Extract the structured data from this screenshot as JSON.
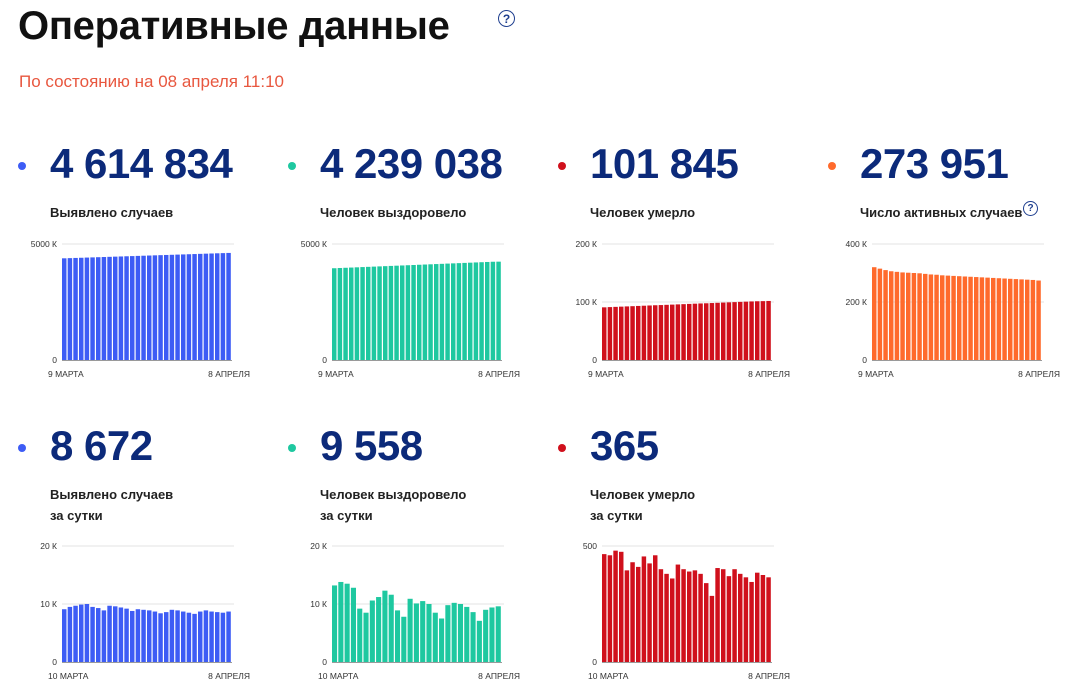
{
  "header": {
    "title": "Оперативные данные",
    "status": "По состоянию на 08 апреля 11:10",
    "help_icon": "question-circle-icon",
    "status_color": "#e8573f"
  },
  "cards": [
    {
      "value": "4 614 834",
      "label_lines": [
        "Выявлено случаев"
      ],
      "color": "#3d5cf5",
      "chart_data": {
        "type": "bar",
        "x_start": "9 МАРТА",
        "x_end": "8 АПРЕЛЯ",
        "ylim": [
          0,
          5000
        ],
        "yticks": [
          {
            "v": 0,
            "t": "0"
          },
          {
            "v": 5000,
            "t": "5000 К"
          }
        ],
        "values": [
          4383,
          4391,
          4399,
          4407,
          4415,
          4423,
          4431,
          4439,
          4447,
          4455,
          4463,
          4471,
          4479,
          4487,
          4495,
          4503,
          4511,
          4519,
          4527,
          4535,
          4543,
          4551,
          4559,
          4567,
          4575,
          4583,
          4591,
          4599,
          4607,
          4615
        ]
      }
    },
    {
      "value": "4 239 038",
      "label_lines": [
        "Человек выздоровело"
      ],
      "color": "#1ec8a0",
      "chart_data": {
        "type": "bar",
        "x_start": "9 МАРТА",
        "x_end": "8 АПРЕЛЯ",
        "ylim": [
          0,
          5000
        ],
        "yticks": [
          {
            "v": 0,
            "t": "0"
          },
          {
            "v": 5000,
            "t": "5000 К"
          }
        ],
        "values": [
          3955,
          3965,
          3975,
          3985,
          3995,
          4005,
          4015,
          4025,
          4035,
          4045,
          4055,
          4065,
          4075,
          4085,
          4095,
          4105,
          4115,
          4125,
          4135,
          4145,
          4155,
          4165,
          4175,
          4185,
          4195,
          4205,
          4215,
          4225,
          4235,
          4239
        ]
      }
    },
    {
      "value": "101 845",
      "label_lines": [
        "Человек умерло"
      ],
      "color": "#d0101c",
      "chart_data": {
        "type": "bar",
        "x_start": "9 МАРТА",
        "x_end": "8 АПРЕЛЯ",
        "ylim": [
          0,
          200
        ],
        "yticks": [
          {
            "v": 0,
            "t": "0"
          },
          {
            "v": 100,
            "t": "100 К"
          },
          {
            "v": 200,
            "t": "200 К"
          }
        ],
        "values": [
          90.8,
          91.2,
          91.6,
          92.0,
          92.4,
          92.8,
          93.2,
          93.6,
          94.0,
          94.4,
          94.7,
          95.1,
          95.5,
          95.9,
          96.3,
          96.7,
          97.1,
          97.5,
          97.8,
          98.2,
          98.6,
          99.0,
          99.4,
          99.8,
          100.2,
          100.6,
          101.0,
          101.3,
          101.5,
          101.8
        ]
      }
    },
    {
      "value": "273 951",
      "label_lines": [
        "Число активных случаев"
      ],
      "color": "#ff6a2c",
      "chart_data": {
        "type": "bar",
        "x_start": "9 МАРТА",
        "x_end": "8 АПРЕЛЯ",
        "ylim": [
          0,
          400
        ],
        "yticks": [
          {
            "v": 0,
            "t": "0"
          },
          {
            "v": 200,
            "t": "200 К"
          },
          {
            "v": 400,
            "t": "400 К"
          }
        ],
        "values": [
          320,
          315,
          310,
          306,
          304,
          302,
          301,
          300,
          299,
          297,
          295,
          294,
          292,
          291,
          290,
          289,
          288,
          287,
          286,
          285,
          284,
          283,
          282,
          281,
          280,
          279,
          278,
          277,
          276,
          274
        ]
      }
    },
    {
      "value": "8 672",
      "label_lines": [
        "Выявлено случаев",
        "за сутки"
      ],
      "color": "#3d5cf5",
      "chart_data": {
        "type": "bar",
        "x_start": "10 МАРТА",
        "x_end": "8 АПРЕЛЯ",
        "ylim": [
          0,
          20
        ],
        "yticks": [
          {
            "v": 0,
            "t": "0"
          },
          {
            "v": 10,
            "t": "10 К"
          },
          {
            "v": 20,
            "t": "20 К"
          }
        ],
        "values": [
          9.1,
          9.5,
          9.7,
          9.9,
          10.0,
          9.5,
          9.3,
          8.9,
          9.7,
          9.6,
          9.4,
          9.2,
          8.8,
          9.1,
          9.0,
          8.9,
          8.7,
          8.4,
          8.6,
          9.0,
          8.9,
          8.7,
          8.5,
          8.3,
          8.7,
          8.9,
          8.7,
          8.6,
          8.5,
          8.7
        ]
      }
    },
    {
      "value": "9 558",
      "label_lines": [
        "Человек выздоровело",
        "за сутки"
      ],
      "color": "#1ec8a0",
      "chart_data": {
        "type": "bar",
        "x_start": "10 МАРТА",
        "x_end": "8 АПРЕЛЯ",
        "ylim": [
          0,
          20
        ],
        "yticks": [
          {
            "v": 0,
            "t": "0"
          },
          {
            "v": 10,
            "t": "10 К"
          },
          {
            "v": 20,
            "t": "20 К"
          }
        ],
        "values": [
          13.2,
          13.8,
          13.5,
          12.8,
          9.2,
          8.5,
          10.6,
          11.2,
          12.3,
          11.6,
          8.9,
          7.8,
          10.9,
          10.1,
          10.5,
          10.0,
          8.5,
          7.5,
          9.8,
          10.2,
          10.0,
          9.5,
          8.6,
          7.1,
          9.0,
          9.4,
          9.6
        ]
      }
    },
    {
      "value": "365",
      "label_lines": [
        "Человек умерло",
        "за сутки"
      ],
      "color": "#d0101c",
      "chart_data": {
        "type": "bar",
        "x_start": "10 МАРТА",
        "x_end": "8 АПРЕЛЯ",
        "ylim": [
          0,
          500
        ],
        "yticks": [
          {
            "v": 0,
            "t": "0"
          },
          {
            "v": 500,
            "t": "500"
          }
        ],
        "values": [
          465,
          460,
          480,
          475,
          395,
          430,
          410,
          455,
          425,
          460,
          400,
          380,
          360,
          420,
          400,
          390,
          395,
          380,
          340,
          285,
          405,
          400,
          370,
          400,
          380,
          365,
          345,
          385,
          375,
          365
        ]
      }
    }
  ]
}
